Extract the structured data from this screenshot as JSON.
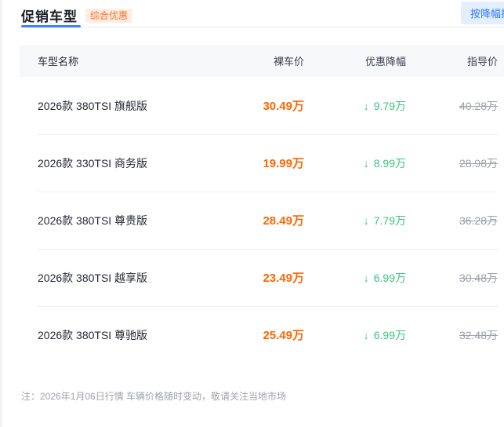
{
  "header": {
    "tab_label": "促销车型",
    "badge_label": "综合优惠",
    "sort_button_label": "按降幅排序"
  },
  "table": {
    "headers": {
      "name": "车型名称",
      "bare_price": "裸车价",
      "discount": "优惠降幅",
      "guide_price": "指导价"
    },
    "rows": [
      {
        "name": "2026款 380TSI 旗舰版",
        "bare_price": "30.49万",
        "discount": "9.79万",
        "guide_price": "40.28万"
      },
      {
        "name": "2026款 330TSI 商务版",
        "bare_price": "19.99万",
        "discount": "8.99万",
        "guide_price": "28.98万"
      },
      {
        "name": "2026款 380TSI 尊贵版",
        "bare_price": "28.49万",
        "discount": "7.79万",
        "guide_price": "36.28万"
      },
      {
        "name": "2026款 380TSI 越享版",
        "bare_price": "23.49万",
        "discount": "6.99万",
        "guide_price": "30.48万"
      },
      {
        "name": "2026款 380TSI 尊驰版",
        "bare_price": "25.49万",
        "discount": "6.99万",
        "guide_price": "32.48万"
      }
    ]
  },
  "icons": {
    "arrow_down": "↓"
  },
  "footer": {
    "note": "注：2026年1月06日行情 车辆价格随时变动，敬请关注当地市场"
  },
  "colors": {
    "accent_blue": "#3d7eff",
    "sort_button_bg": "#e3efff",
    "sort_button_text": "#2b76ff",
    "badge_orange": "#ff6e26",
    "badge_bg": "#ffeee3",
    "price_orange": "#ff6600",
    "discount_green": "#3bc57e",
    "guide_gray": "#9ca0a8"
  }
}
